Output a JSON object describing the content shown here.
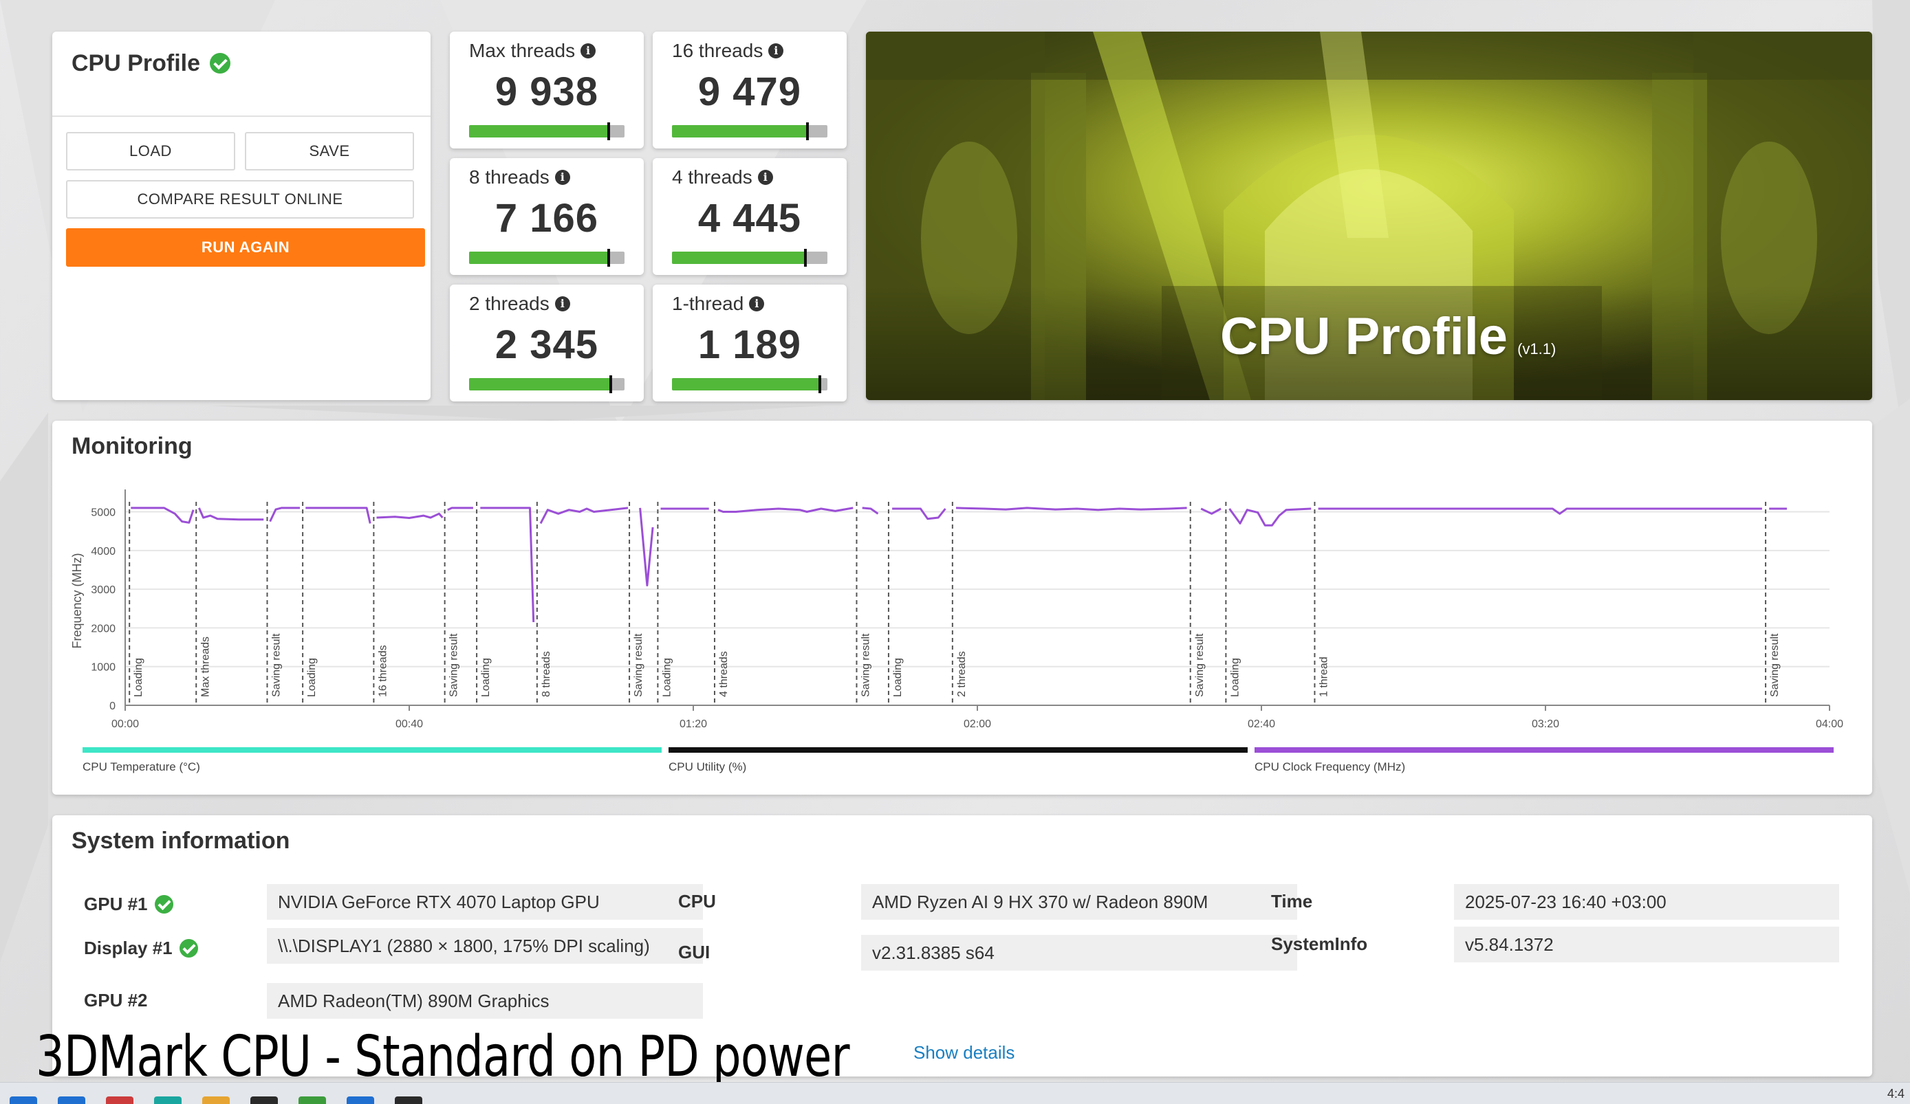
{
  "profile": {
    "title": "CPU Profile",
    "load_label": "LOAD",
    "save_label": "SAVE",
    "compare_label": "COMPARE RESULT ONLINE",
    "run_again_label": "RUN AGAIN"
  },
  "scores": [
    {
      "label": "Max threads",
      "value": "9 938",
      "bar_fraction": 0.9
    },
    {
      "label": "16 threads",
      "value": "9 479",
      "bar_fraction": 0.87
    },
    {
      "label": "8 threads",
      "value": "7 166",
      "bar_fraction": 0.9
    },
    {
      "label": "4 threads",
      "value": "4 445",
      "bar_fraction": 0.86
    },
    {
      "label": "2 threads",
      "value": "2 345",
      "bar_fraction": 0.91
    },
    {
      "label": "1-thread",
      "value": "1 189",
      "bar_fraction": 0.95
    }
  ],
  "banner": {
    "title": "CPU Profile",
    "version": "(v1.1)"
  },
  "monitoring": {
    "title": "Monitoring",
    "legend": [
      "CPU Temperature (°C)",
      "CPU Utility (%)",
      "CPU Clock Frequency (MHz)"
    ],
    "legend_colors": [
      "#3ee6c7",
      "#111111",
      "#9b4fd6"
    ]
  },
  "chart_data": {
    "type": "line",
    "ylabel": "Frequency (MHz)",
    "ylim": [
      0,
      5400
    ],
    "yticks": [
      "0",
      "1000",
      "2000",
      "3000",
      "4000",
      "5000"
    ],
    "xlim": [
      0,
      240
    ],
    "xticks": [
      "00:00",
      "00:40",
      "01:20",
      "02:00",
      "02:40",
      "03:20",
      "04:00"
    ],
    "xtick_values": [
      0,
      40,
      80,
      120,
      160,
      200,
      240
    ],
    "phases": [
      {
        "t": 0.6,
        "label": "Loading"
      },
      {
        "t": 10,
        "label": "Max threads"
      },
      {
        "t": 20,
        "label": "Saving result"
      },
      {
        "t": 25,
        "label": "Loading"
      },
      {
        "t": 35,
        "label": "16 threads"
      },
      {
        "t": 45,
        "label": "Saving result"
      },
      {
        "t": 49.5,
        "label": "Loading"
      },
      {
        "t": 58,
        "label": "8 threads"
      },
      {
        "t": 71,
        "label": "Saving result"
      },
      {
        "t": 75,
        "label": "Loading"
      },
      {
        "t": 83,
        "label": "4 threads"
      },
      {
        "t": 103,
        "label": "Saving result"
      },
      {
        "t": 107.5,
        "label": "Loading"
      },
      {
        "t": 116.5,
        "label": "2 threads"
      },
      {
        "t": 150,
        "label": "Saving result"
      },
      {
        "t": 155,
        "label": "Loading"
      },
      {
        "t": 167.5,
        "label": "1 thread"
      },
      {
        "t": 231,
        "label": "Saving result"
      }
    ],
    "series": [
      {
        "color": "#9b4fd6",
        "segments": [
          [
            [
              0.8,
              5100
            ],
            [
              5.5,
              5100
            ],
            [
              7,
              4950
            ],
            [
              8,
              4750
            ],
            [
              9,
              4720
            ],
            [
              9.6,
              5050
            ]
          ],
          [
            [
              10.4,
              5100
            ],
            [
              11,
              4850
            ],
            [
              12,
              4900
            ],
            [
              13,
              4820
            ],
            [
              16,
              4800
            ],
            [
              19.5,
              4800
            ]
          ],
          [
            [
              20.4,
              4750
            ],
            [
              21.2,
              5060
            ],
            [
              22,
              5100
            ],
            [
              24.6,
              5100
            ]
          ],
          [
            [
              25.4,
              5100
            ],
            [
              34,
              5100
            ],
            [
              34.5,
              4700
            ]
          ],
          [
            [
              35.4,
              4850
            ],
            [
              38,
              4870
            ],
            [
              40,
              4840
            ],
            [
              42,
              4900
            ],
            [
              43,
              4850
            ],
            [
              44.2,
              4950
            ],
            [
              44.7,
              4850
            ]
          ],
          [
            [
              45.4,
              5050
            ],
            [
              46,
              5100
            ],
            [
              49,
              5100
            ]
          ],
          [
            [
              50,
              5100
            ],
            [
              56,
              5100
            ],
            [
              57,
              5100
            ],
            [
              57.5,
              2150
            ]
          ],
          [
            [
              58.5,
              4700
            ],
            [
              59.5,
              5050
            ],
            [
              61,
              4950
            ],
            [
              62.5,
              5050
            ],
            [
              64,
              5000
            ],
            [
              65,
              5080
            ],
            [
              66,
              5000
            ],
            [
              70.8,
              5100
            ]
          ],
          [
            [
              72.5,
              5100
            ],
            [
              73.5,
              3100
            ],
            [
              74.3,
              4600
            ]
          ],
          [
            [
              75.4,
              5080
            ],
            [
              82.2,
              5080
            ]
          ],
          [
            [
              83.5,
              5050
            ],
            [
              84.2,
              5000
            ],
            [
              86,
              5000
            ],
            [
              89,
              5050
            ],
            [
              92,
              5080
            ],
            [
              95,
              5050
            ],
            [
              96,
              5000
            ],
            [
              98,
              5080
            ],
            [
              100,
              5020
            ],
            [
              102.5,
              5100
            ]
          ],
          [
            [
              103.8,
              5100
            ],
            [
              105,
              5080
            ],
            [
              106,
              4950
            ]
          ],
          [
            [
              108,
              5080
            ],
            [
              112,
              5080
            ],
            [
              113,
              4820
            ],
            [
              114.5,
              4850
            ],
            [
              115.5,
              5080
            ]
          ],
          [
            [
              117,
              5100
            ],
            [
              121,
              5080
            ],
            [
              124,
              5060
            ],
            [
              127,
              5100
            ],
            [
              131,
              5060
            ],
            [
              134,
              5080
            ],
            [
              137,
              5050
            ],
            [
              140,
              5080
            ],
            [
              143,
              5060
            ],
            [
              147,
              5080
            ],
            [
              149.5,
              5100
            ]
          ],
          [
            [
              151.5,
              5080
            ],
            [
              153,
              4950
            ],
            [
              154.3,
              5080
            ]
          ],
          [
            [
              155.5,
              5080
            ],
            [
              157,
              4700
            ],
            [
              158,
              5050
            ],
            [
              159.5,
              4980
            ],
            [
              160.5,
              4650
            ],
            [
              161.5,
              4650
            ],
            [
              162.5,
              4900
            ],
            [
              163.5,
              5050
            ],
            [
              167,
              5080
            ]
          ],
          [
            [
              168,
              5080
            ],
            [
              190,
              5080
            ],
            [
              201,
              5080
            ],
            [
              202,
              4950
            ],
            [
              203,
              5080
            ],
            [
              230.5,
              5080
            ]
          ],
          [
            [
              231.5,
              5080
            ],
            [
              234,
              5080
            ]
          ]
        ]
      }
    ]
  },
  "sysinfo": {
    "title": "System information",
    "rows": [
      {
        "label": "GPU #1",
        "value": "NVIDIA GeForce RTX 4070 Laptop GPU",
        "verified": true
      },
      {
        "label": "Display #1",
        "value": "\\\\.\\DISPLAY1 (2880 × 1800, 175% DPI scaling)",
        "verified": true
      },
      {
        "label": "GPU #2",
        "value": "AMD Radeon(TM) 890M Graphics",
        "verified": false
      },
      {
        "label": "CPU",
        "value": "AMD Ryzen AI 9 HX 370 w/ Radeon 890M"
      },
      {
        "label": "GUI",
        "value": "v2.31.8385 s64"
      },
      {
        "label": "Time",
        "value": "2025-07-23 16:40 +03:00"
      },
      {
        "label": "SystemInfo",
        "value": "v5.84.1372"
      }
    ],
    "show_details": "Show details"
  },
  "caption": "3DMark CPU - Standard on PD power",
  "taskbar": {
    "clock": "4:4",
    "icon_colors": [
      "#1f6fd1",
      "#1f6fd1",
      "#cc3c3c",
      "#1aa6a0",
      "#e6a532",
      "#2a2a2a",
      "#3c9c3c",
      "#1f6fd1",
      "#2a2a2a"
    ]
  }
}
